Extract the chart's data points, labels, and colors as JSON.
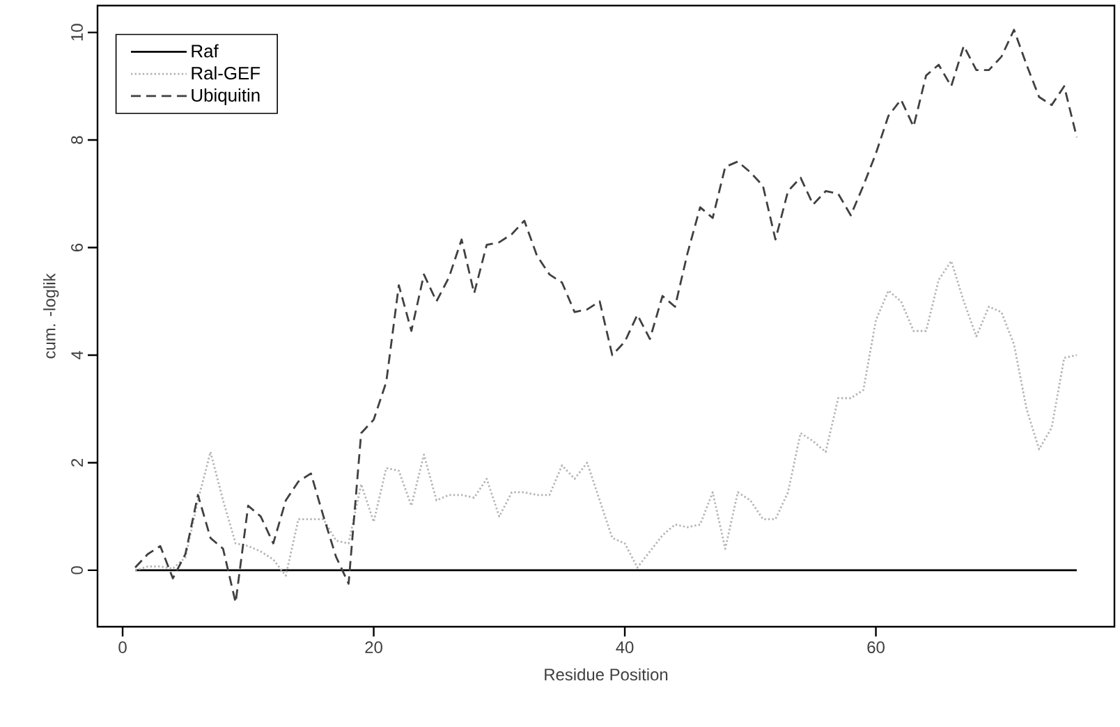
{
  "chart_data": {
    "type": "line",
    "xlabel": "Residue Position",
    "ylabel": "cum. -loglik",
    "x": [
      1,
      2,
      3,
      4,
      5,
      6,
      7,
      8,
      9,
      10,
      11,
      12,
      13,
      14,
      15,
      16,
      17,
      18,
      19,
      20,
      21,
      22,
      23,
      24,
      25,
      26,
      27,
      28,
      29,
      30,
      31,
      32,
      33,
      34,
      35,
      36,
      37,
      38,
      39,
      40,
      41,
      42,
      43,
      44,
      45,
      46,
      47,
      48,
      49,
      50,
      51,
      52,
      53,
      54,
      55,
      56,
      57,
      58,
      59,
      60,
      61,
      62,
      63,
      64,
      65,
      66,
      67,
      68,
      69,
      70,
      71,
      72,
      73,
      74,
      75,
      76
    ],
    "series": [
      {
        "name": "Raf",
        "color": "#000000",
        "line_style": "solid",
        "values": [
          0,
          0,
          0,
          0,
          0,
          0,
          0,
          0,
          0,
          0,
          0,
          0,
          0,
          0,
          0,
          0,
          0,
          0,
          0,
          0,
          0,
          0,
          0,
          0,
          0,
          0,
          0,
          0,
          0,
          0,
          0,
          0,
          0,
          0,
          0,
          0,
          0,
          0,
          0,
          0,
          0,
          0,
          0,
          0,
          0,
          0,
          0,
          0,
          0,
          0,
          0,
          0,
          0,
          0,
          0,
          0,
          0,
          0,
          0,
          0,
          0,
          0,
          0,
          0,
          0,
          0,
          0,
          0,
          0,
          0,
          0,
          0,
          0,
          0,
          0,
          0
        ]
      },
      {
        "name": "Ral-GEF",
        "color": "#b4b4b4",
        "line_style": "dotted",
        "values": [
          0,
          0.07,
          0.07,
          0.03,
          0.24,
          1.3,
          2.2,
          1.3,
          0.5,
          0.45,
          0.35,
          0.2,
          -0.1,
          0.95,
          0.95,
          0.95,
          0.55,
          0.5,
          1.6,
          0.9,
          1.9,
          1.85,
          1.2,
          2.15,
          1.3,
          1.4,
          1.4,
          1.35,
          1.7,
          1.0,
          1.45,
          1.45,
          1.4,
          1.4,
          1.95,
          1.7,
          2.0,
          1.3,
          0.6,
          0.5,
          0.05,
          0.35,
          0.65,
          0.85,
          0.8,
          0.85,
          1.45,
          0.4,
          1.45,
          1.3,
          0.95,
          0.95,
          1.45,
          2.55,
          2.4,
          2.2,
          3.2,
          3.2,
          3.35,
          4.65,
          5.2,
          5.0,
          4.45,
          4.45,
          5.4,
          5.75,
          5.0,
          4.35,
          4.9,
          4.8,
          4.2,
          3.0,
          2.25,
          2.65,
          3.95,
          4.0
        ]
      },
      {
        "name": "Ubiquitin",
        "color": "#404040",
        "line_style": "dashed",
        "values": [
          0.05,
          0.3,
          0.45,
          -0.15,
          0.3,
          1.4,
          0.6,
          0.4,
          -0.6,
          1.2,
          1.0,
          0.5,
          1.3,
          1.65,
          1.8,
          1.0,
          0.25,
          -0.25,
          2.55,
          2.8,
          3.5,
          5.3,
          4.45,
          5.5,
          5.0,
          5.45,
          6.15,
          5.15,
          6.05,
          6.1,
          6.25,
          6.5,
          5.85,
          5.5,
          5.35,
          4.8,
          4.85,
          5.0,
          4.0,
          4.25,
          4.75,
          4.3,
          5.1,
          4.9,
          5.9,
          6.75,
          6.55,
          7.5,
          7.6,
          7.4,
          7.15,
          6.15,
          7.05,
          7.3,
          6.8,
          7.05,
          7.0,
          6.6,
          7.15,
          7.75,
          8.45,
          8.75,
          8.25,
          9.2,
          9.4,
          9.0,
          9.75,
          9.3,
          9.3,
          9.55,
          10.05,
          9.4,
          8.8,
          8.65,
          9.0,
          8.05
        ]
      }
    ],
    "xlim": [
      -2,
      79
    ],
    "ylim": [
      -1.05,
      10.5
    ],
    "xticks": [
      0,
      20,
      40,
      60
    ],
    "yticks": [
      0,
      2,
      4,
      6,
      8,
      10
    ],
    "legend": "top left"
  }
}
